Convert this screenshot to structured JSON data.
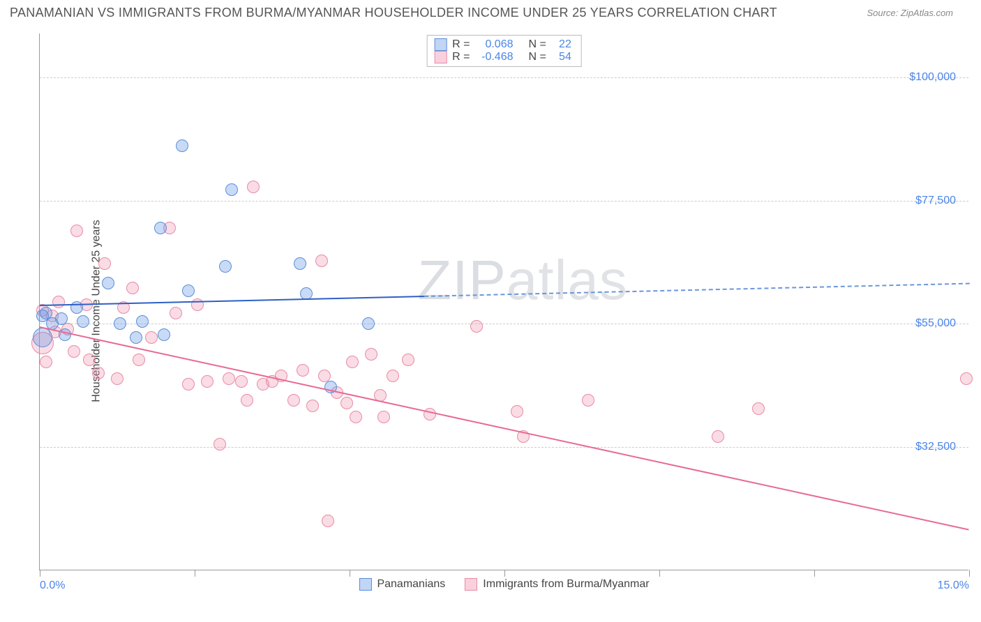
{
  "header": {
    "title": "PANAMANIAN VS IMMIGRANTS FROM BURMA/MYANMAR HOUSEHOLDER INCOME UNDER 25 YEARS CORRELATION CHART",
    "source": "Source: ZipAtlas.com"
  },
  "chart": {
    "type": "scatter",
    "watermark": "ZIPatlas",
    "ylabel": "Householder Income Under 25 years",
    "background_color": "#ffffff",
    "grid_color": "#cccccc",
    "axis_color": "#999999",
    "tick_label_color": "#4a84e8",
    "xlim": [
      0.0,
      15.0
    ],
    "ylim": [
      10000,
      108000
    ],
    "ytick_values": [
      32500,
      55000,
      77500,
      100000
    ],
    "ytick_labels": [
      "$32,500",
      "$55,000",
      "$77,500",
      "$100,000"
    ],
    "xtick_values": [
      0,
      2.5,
      5.0,
      7.5,
      10.0,
      12.5,
      15.0
    ],
    "xtick_labels_shown": {
      "0": "0.0%",
      "15": "15.0%"
    },
    "marker_radius": 9,
    "series": {
      "blue": {
        "label": "Panamanians",
        "fill": "rgba(100,150,230,0.35)",
        "stroke": "#5a8ed8",
        "R": "0.068",
        "N": "22",
        "trend": {
          "y_at_x0": 58500,
          "y_at_x15": 62500,
          "solid_until_x": 6.2
        },
        "points": [
          {
            "x": 0.05,
            "y": 56500
          },
          {
            "x": 0.05,
            "y": 52500,
            "r": 14
          },
          {
            "x": 0.1,
            "y": 57000
          },
          {
            "x": 0.2,
            "y": 55000
          },
          {
            "x": 0.35,
            "y": 56000
          },
          {
            "x": 0.4,
            "y": 53000
          },
          {
            "x": 0.6,
            "y": 58000
          },
          {
            "x": 0.7,
            "y": 55500
          },
          {
            "x": 1.1,
            "y": 62500
          },
          {
            "x": 1.3,
            "y": 55000
          },
          {
            "x": 1.55,
            "y": 52500
          },
          {
            "x": 1.65,
            "y": 55500
          },
          {
            "x": 1.95,
            "y": 72500
          },
          {
            "x": 2.0,
            "y": 53000
          },
          {
            "x": 2.3,
            "y": 87500
          },
          {
            "x": 2.4,
            "y": 61000
          },
          {
            "x": 3.0,
            "y": 65500
          },
          {
            "x": 3.1,
            "y": 79500
          },
          {
            "x": 4.2,
            "y": 66000
          },
          {
            "x": 4.3,
            "y": 60500
          },
          {
            "x": 4.7,
            "y": 43500
          },
          {
            "x": 5.3,
            "y": 55000
          }
        ]
      },
      "pink": {
        "label": "Immigrants from Burma/Myanmar",
        "fill": "rgba(240,140,170,0.30)",
        "stroke": "#e88aa8",
        "R": "-0.468",
        "N": "54",
        "trend": {
          "y_at_x0": 54500,
          "y_at_x15": 17500,
          "solid_until_x": 15.0
        },
        "points": [
          {
            "x": 0.05,
            "y": 57500
          },
          {
            "x": 0.05,
            "y": 51500,
            "r": 16
          },
          {
            "x": 0.1,
            "y": 48000
          },
          {
            "x": 0.2,
            "y": 56500
          },
          {
            "x": 0.25,
            "y": 53500
          },
          {
            "x": 0.3,
            "y": 59000
          },
          {
            "x": 0.45,
            "y": 54000
          },
          {
            "x": 0.55,
            "y": 50000
          },
          {
            "x": 0.6,
            "y": 72000
          },
          {
            "x": 0.75,
            "y": 58500
          },
          {
            "x": 0.8,
            "y": 48500
          },
          {
            "x": 0.95,
            "y": 46000
          },
          {
            "x": 1.05,
            "y": 66000
          },
          {
            "x": 1.25,
            "y": 45000
          },
          {
            "x": 1.35,
            "y": 58000
          },
          {
            "x": 1.5,
            "y": 61500
          },
          {
            "x": 1.6,
            "y": 48500
          },
          {
            "x": 1.8,
            "y": 52500
          },
          {
            "x": 2.1,
            "y": 72500
          },
          {
            "x": 2.2,
            "y": 57000
          },
          {
            "x": 2.4,
            "y": 44000
          },
          {
            "x": 2.55,
            "y": 58500
          },
          {
            "x": 2.7,
            "y": 44500
          },
          {
            "x": 2.9,
            "y": 33000
          },
          {
            "x": 3.05,
            "y": 45000
          },
          {
            "x": 3.25,
            "y": 44500
          },
          {
            "x": 3.35,
            "y": 41000
          },
          {
            "x": 3.45,
            "y": 80000
          },
          {
            "x": 3.6,
            "y": 44000
          },
          {
            "x": 3.75,
            "y": 44500
          },
          {
            "x": 3.9,
            "y": 45500
          },
          {
            "x": 4.1,
            "y": 41000
          },
          {
            "x": 4.25,
            "y": 46500
          },
          {
            "x": 4.4,
            "y": 40000
          },
          {
            "x": 4.55,
            "y": 66500
          },
          {
            "x": 4.6,
            "y": 45500
          },
          {
            "x": 4.65,
            "y": 19000
          },
          {
            "x": 4.8,
            "y": 42500
          },
          {
            "x": 4.95,
            "y": 40500
          },
          {
            "x": 5.05,
            "y": 48000
          },
          {
            "x": 5.1,
            "y": 38000
          },
          {
            "x": 5.35,
            "y": 49500
          },
          {
            "x": 5.5,
            "y": 42000
          },
          {
            "x": 5.55,
            "y": 38000
          },
          {
            "x": 5.7,
            "y": 45500
          },
          {
            "x": 5.95,
            "y": 48500
          },
          {
            "x": 6.3,
            "y": 38500
          },
          {
            "x": 7.05,
            "y": 54500
          },
          {
            "x": 7.7,
            "y": 39000
          },
          {
            "x": 7.8,
            "y": 34500
          },
          {
            "x": 8.85,
            "y": 41000
          },
          {
            "x": 10.95,
            "y": 34500
          },
          {
            "x": 11.6,
            "y": 39500
          },
          {
            "x": 14.95,
            "y": 45000
          }
        ]
      }
    }
  },
  "legend_top": {
    "labels": {
      "r": "R =",
      "n": "N ="
    }
  }
}
